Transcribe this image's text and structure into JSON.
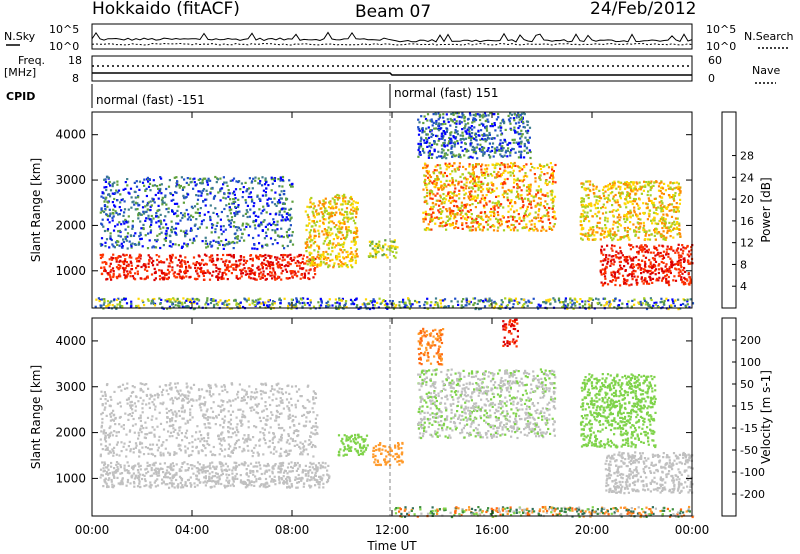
{
  "header": {
    "station": "Hokkaido (fitACF)",
    "beam": "Beam 07",
    "date": "24/Feb/2012"
  },
  "top_panel": {
    "nsky_label": "N.Sky",
    "nsearch_label": "N.Search",
    "freq_label_line1": "Freq.",
    "freq_label_line2": "[MHz]",
    "nave_label": "Nave",
    "cpid_label": "CPID",
    "noise_ticks_left": [
      "10^5",
      "10^0"
    ],
    "noise_ticks_right": [
      "10^5",
      "10^0"
    ],
    "freq_ticks_left": [
      "18",
      "8"
    ],
    "nave_ticks_right": [
      "60",
      "0"
    ],
    "cpid_segments": [
      {
        "text": "normal (fast) -151",
        "start_hour": 0,
        "end_hour": 12
      },
      {
        "text": "normal (fast) 151",
        "start_hour": 12,
        "end_hour": 24
      }
    ]
  },
  "x_axis": {
    "label": "Time UT",
    "tick_labels": [
      "00:00",
      "04:00",
      "08:00",
      "12:00",
      "16:00",
      "20:00",
      "00:00"
    ]
  },
  "chart_data": [
    {
      "type": "heatmap",
      "panel": "power",
      "xlabel": "Time UT",
      "ylabel": "Slant Range [km]",
      "xlim_hours": [
        0,
        24
      ],
      "ylim": [
        180,
        4500
      ],
      "y_tick_labels": [
        "1000",
        "2000",
        "3000",
        "4000"
      ],
      "colorbar": {
        "label": "Power [dB]",
        "tick_labels": [
          "4",
          "8",
          "12",
          "16",
          "20",
          "24",
          "28"
        ],
        "colors": [
          "#0000ff",
          "#1f4fc8",
          "#3e7d8c",
          "#5fa03c",
          "#a8d020",
          "#ffd700",
          "#ff8c00",
          "#ff3300",
          "#dd0000"
        ]
      },
      "features": [
        {
          "name": "strong low-range band",
          "t0": 0.3,
          "t1": 8.9,
          "r0": 820,
          "r1": 1380,
          "level": "28+"
        },
        {
          "name": "band rising to far range",
          "t0": 8.5,
          "t1": 10.6,
          "r0": 1100,
          "r1": 2700,
          "level": "16-20"
        },
        {
          "name": "sparse echoes early morning",
          "t0": 0.3,
          "t1": 8.0,
          "r0": 1500,
          "r1": 3100,
          "level": "4-12"
        },
        {
          "name": "spot near 12 UT",
          "t0": 11.0,
          "t1": 12.2,
          "r0": 1300,
          "r1": 1700,
          "level": "12-20"
        },
        {
          "name": "wavy mid-range echoes",
          "t0": 13.2,
          "t1": 18.5,
          "r0": 1900,
          "r1": 3400,
          "level": "16-28"
        },
        {
          "name": "high-range echoes",
          "t0": 13.0,
          "t1": 17.5,
          "r0": 3500,
          "r1": 4500,
          "level": "4-12"
        },
        {
          "name": "ground scatter late evening",
          "t0": 20.3,
          "t1": 24.0,
          "r0": 700,
          "r1": 1600,
          "level": "28+"
        },
        {
          "name": "diagonal streaks late evening",
          "t0": 19.5,
          "t1": 23.5,
          "r0": 1700,
          "r1": 3000,
          "level": "16-24"
        },
        {
          "name": "near-range clutter",
          "t0": 0.0,
          "t1": 24.0,
          "r0": 180,
          "r1": 420,
          "level": "4-20"
        }
      ]
    },
    {
      "type": "heatmap",
      "panel": "velocity",
      "xlabel": "Time UT",
      "ylabel": "Slant Range [km]",
      "xlim_hours": [
        0,
        24
      ],
      "ylim": [
        180,
        4500
      ],
      "y_tick_labels": [
        "1000",
        "2000",
        "3000",
        "4000"
      ],
      "colorbar": {
        "label": "Velocity [m s-1]",
        "tick_labels": [
          "200",
          "100",
          "50",
          "15",
          "-15",
          "-50",
          "-100",
          "-200"
        ],
        "colors": [
          "#1a2ea8",
          "#2f6f5a",
          "#3c8c3c",
          "#7fd34a",
          "#c0c0c0",
          "#ff9a2a",
          "#ff6a10",
          "#ff3300",
          "#dd0000"
        ]
      },
      "features": [
        {
          "name": "ground scatter band (grey)",
          "t0": 0.3,
          "t1": 9.5,
          "r0": 820,
          "r1": 1380,
          "level": "-15 to 15"
        },
        {
          "name": "grey streaks early morning",
          "t0": 0.3,
          "t1": 9.0,
          "r0": 1500,
          "r1": 3100,
          "level": "-15 to 15"
        },
        {
          "name": "green echoes near 10 UT",
          "t0": 9.8,
          "t1": 11.0,
          "r0": 1500,
          "r1": 2000,
          "level": "15-50"
        },
        {
          "name": "orange echoes near 12 UT",
          "t0": 11.2,
          "t1": 12.4,
          "r0": 1300,
          "r1": 1800,
          "level": "-15 to -50"
        },
        {
          "name": "grey/green mid-range after 13 UT",
          "t0": 13.0,
          "t1": 18.5,
          "r0": 1900,
          "r1": 3400,
          "level": "-15 to 50"
        },
        {
          "name": "red streak at high range",
          "t0": 16.4,
          "t1": 17.0,
          "r0": 3900,
          "r1": 4500,
          "level": "-200"
        },
        {
          "name": "orange echoes at high range",
          "t0": 13.0,
          "t1": 14.0,
          "r0": 3500,
          "r1": 4300,
          "level": "-50 to -100"
        },
        {
          "name": "green streaks late evening",
          "t0": 19.5,
          "t1": 22.5,
          "r0": 1700,
          "r1": 3300,
          "level": "15-50"
        },
        {
          "name": "grey ground scatter late evening",
          "t0": 20.5,
          "t1": 24.0,
          "r0": 700,
          "r1": 1600,
          "level": "-15 to 15"
        },
        {
          "name": "near-range clutter",
          "t0": 12.0,
          "t1": 24.0,
          "r0": 180,
          "r1": 400,
          "level": "mixed"
        }
      ]
    }
  ]
}
